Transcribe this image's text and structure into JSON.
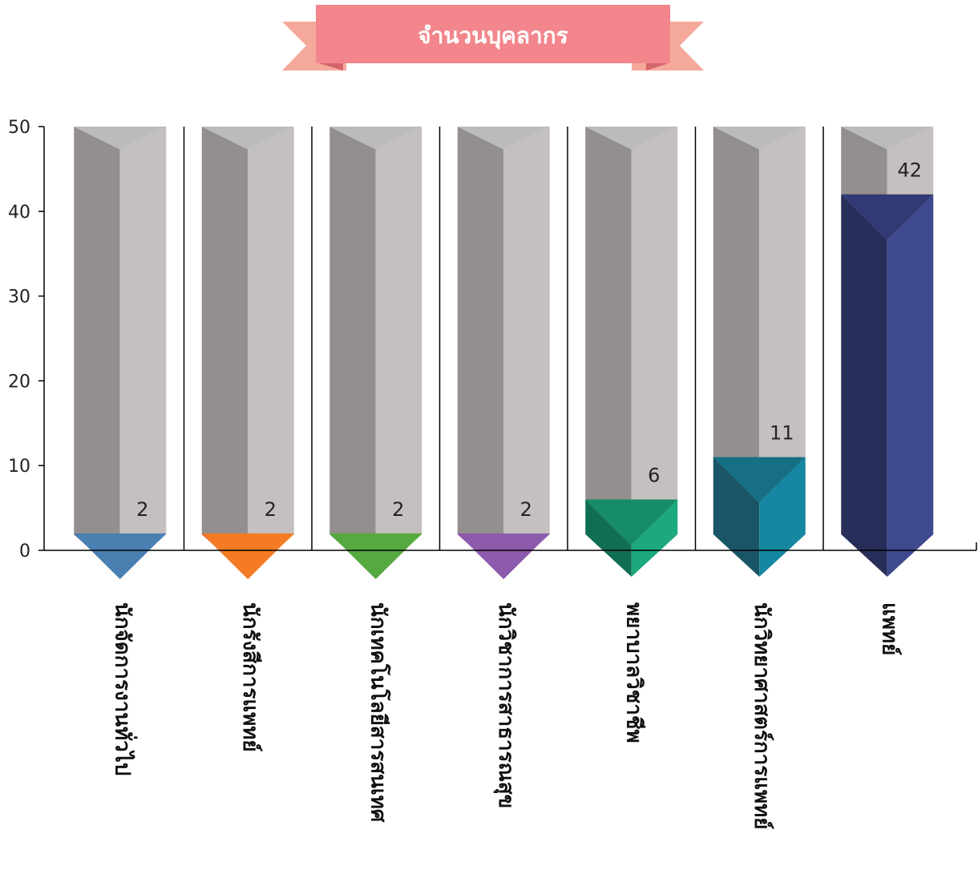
{
  "chart_data": {
    "type": "bar",
    "title": "จำนวนบุคลากร",
    "categories": [
      "นักจัดการงานทั่วไป",
      "นักรังสีการแพทย์",
      "นักเทคโนโลยีสารสนเทศ",
      "นักวิชาการสาธารณสุข",
      "พยาบาลวิชาชีพ",
      "นักวิทยาศาสตร์การแพทย์",
      "แพทย์"
    ],
    "values": [
      2,
      2,
      2,
      2,
      6,
      11,
      42
    ],
    "ylim": [
      0,
      50
    ],
    "yticks": [
      0,
      10,
      20,
      30,
      40,
      50
    ],
    "xlabel": "",
    "ylabel": "",
    "grid": false,
    "legend": "none",
    "colors": {
      "bars": [
        {
          "left": "#264b6e",
          "right": "#6aa3d0",
          "top": "#4a7fb2"
        },
        {
          "left": "#e63a2e",
          "right": "#f9a11f",
          "top": "#f47a24"
        },
        {
          "left": "#3d7a36",
          "right": "#6cc04a",
          "top": "#56a840"
        },
        {
          "left": "#8b2192",
          "right": "#8a86c4",
          "top": "#8d5bab"
        },
        {
          "left": "#106e52",
          "right": "#1ba97d",
          "top": "#168d68"
        },
        {
          "left": "#195566",
          "right": "#1687a1",
          "top": "#176f86"
        },
        {
          "left": "#272e5a",
          "right": "#3e498e",
          "top": "#313a74"
        }
      ],
      "column_left": "#938f8e",
      "column_right": "#c4c0bf",
      "column_top": "#bcbbbb",
      "ribbon": "#f2868c",
      "ribbon_tail": "#f5a99b",
      "ribbon_fold": "#d4666b",
      "axis": "#000000"
    }
  }
}
